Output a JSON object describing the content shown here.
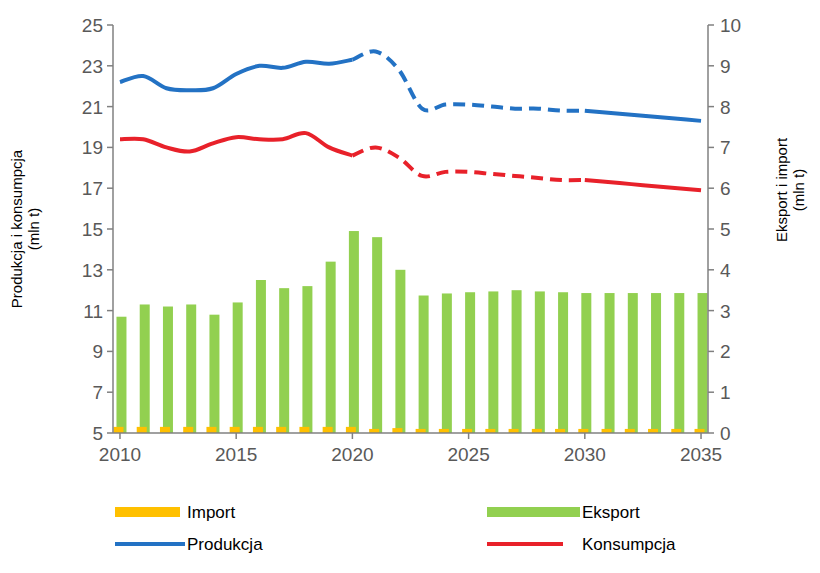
{
  "chart_data": {
    "type": "bar",
    "x": [
      2010,
      2011,
      2012,
      2013,
      2014,
      2015,
      2016,
      2017,
      2018,
      2019,
      2020,
      2021,
      2022,
      2023,
      2024,
      2025,
      2026,
      2027,
      2028,
      2029,
      2030,
      2031,
      2032,
      2033,
      2034,
      2035
    ],
    "xlim": [
      2009.7,
      2035.3
    ],
    "xticks": [
      2010,
      2015,
      2020,
      2025,
      2030,
      2035
    ],
    "ylim": [
      5,
      25
    ],
    "yticks": [
      5,
      7,
      9,
      11,
      13,
      15,
      17,
      19,
      21,
      23,
      25
    ],
    "y2lim": [
      0,
      10
    ],
    "y2ticks": [
      0,
      1,
      2,
      3,
      4,
      5,
      6,
      7,
      8,
      9,
      10
    ],
    "ylabel": [
      "Produkcja i konsumpcja",
      "(mln t)"
    ],
    "y2label": [
      "Eksport i import",
      "(mln t)"
    ],
    "legend": "bottom",
    "grid": false,
    "series": [
      {
        "name": "Import",
        "type": "bar",
        "axis": "y2",
        "color": "#ffc000",
        "values": [
          0.15,
          0.15,
          0.15,
          0.15,
          0.15,
          0.15,
          0.15,
          0.15,
          0.15,
          0.15,
          0.15,
          0.1,
          0.12,
          0.1,
          0.1,
          0.1,
          0.1,
          0.1,
          0.1,
          0.1,
          0.1,
          0.1,
          0.1,
          0.1,
          0.1,
          0.1
        ]
      },
      {
        "name": "Eksport",
        "type": "bar",
        "axis": "y2",
        "color": "#92d050",
        "values": [
          2.85,
          3.15,
          3.1,
          3.15,
          2.9,
          3.2,
          3.75,
          3.55,
          3.6,
          4.2,
          4.95,
          4.8,
          4.0,
          3.37,
          3.42,
          3.45,
          3.47,
          3.5,
          3.47,
          3.45,
          3.43,
          3.43,
          3.43,
          3.43,
          3.43,
          3.43
        ]
      },
      {
        "name": "Produkcja",
        "type": "line",
        "color": "#2372c4",
        "line_style": "solid",
        "values": [
          22.2,
          22.5,
          21.9,
          21.8,
          21.9,
          22.6,
          23.0,
          22.9,
          23.2,
          23.1,
          23.3,
          null,
          null,
          null,
          null,
          null,
          null,
          null,
          null,
          null,
          null,
          null,
          null,
          null,
          null,
          null
        ]
      },
      {
        "name": "Produkcja",
        "type": "line",
        "color": "#2372c4",
        "line_style": "dashed",
        "values": [
          null,
          null,
          null,
          null,
          null,
          null,
          null,
          null,
          null,
          null,
          23.3,
          23.7,
          22.8,
          20.9,
          21.1,
          21.1,
          21.0,
          20.9,
          20.9,
          20.8,
          20.8,
          null,
          null,
          null,
          null,
          null
        ]
      },
      {
        "name": "Produkcja",
        "type": "line",
        "color": "#2372c4",
        "line_style": "solid",
        "values": [
          null,
          null,
          null,
          null,
          null,
          null,
          null,
          null,
          null,
          null,
          null,
          null,
          null,
          null,
          null,
          null,
          null,
          null,
          null,
          null,
          20.8,
          20.7,
          20.6,
          20.5,
          20.4,
          20.3
        ]
      },
      {
        "name": "Konsumpcja",
        "type": "line",
        "color": "#e8212a",
        "line_style": "solid",
        "values": [
          19.4,
          19.4,
          19.0,
          18.8,
          19.2,
          19.5,
          19.4,
          19.4,
          19.7,
          19.0,
          18.6,
          null,
          null,
          null,
          null,
          null,
          null,
          null,
          null,
          null,
          null,
          null,
          null,
          null,
          null,
          null
        ]
      },
      {
        "name": "Konsumpcja",
        "type": "line",
        "color": "#e8212a",
        "line_style": "dashed",
        "values": [
          null,
          null,
          null,
          null,
          null,
          null,
          null,
          null,
          null,
          null,
          18.6,
          19.0,
          18.5,
          17.6,
          17.8,
          17.8,
          17.7,
          17.6,
          17.5,
          17.4,
          17.4,
          null,
          null,
          null,
          null,
          null
        ]
      },
      {
        "name": "Konsumpcja",
        "type": "line",
        "color": "#e8212a",
        "line_style": "solid",
        "values": [
          null,
          null,
          null,
          null,
          null,
          null,
          null,
          null,
          null,
          null,
          null,
          null,
          null,
          null,
          null,
          null,
          null,
          null,
          null,
          null,
          17.4,
          17.3,
          17.2,
          17.1,
          17.0,
          16.9
        ]
      }
    ]
  }
}
